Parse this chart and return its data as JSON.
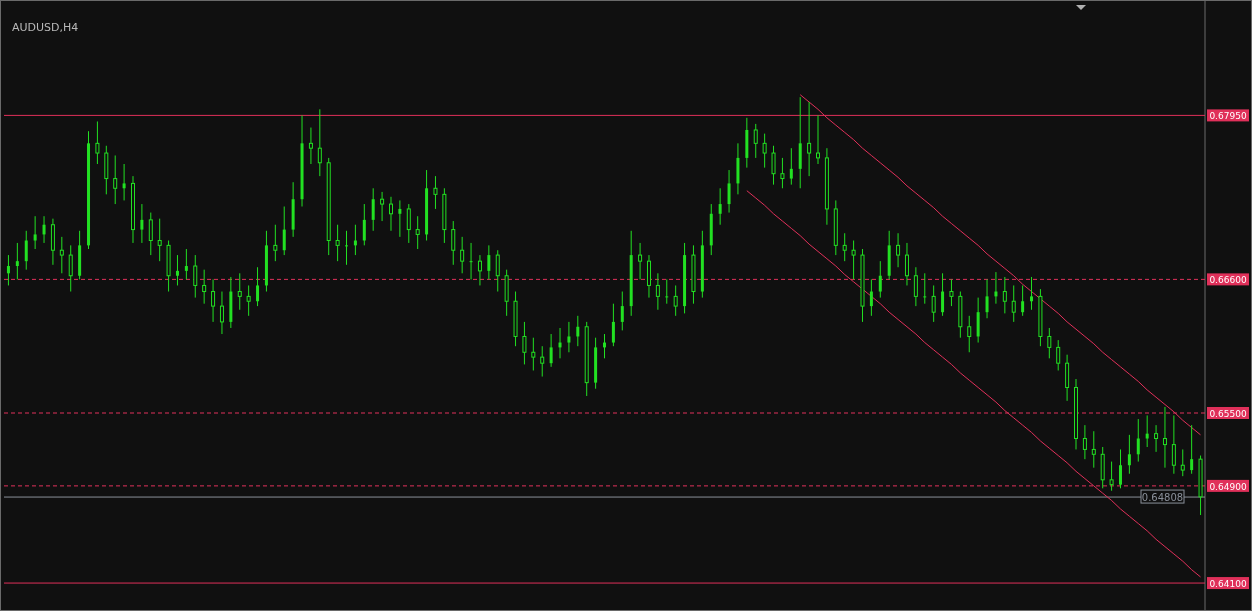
{
  "chart_data": {
    "type": "candlestick",
    "title": "AUDUSD,H4",
    "categories": [
      null,
      null,
      null,
      null,
      null,
      null,
      null,
      null,
      null,
      null,
      null,
      null,
      null,
      null,
      null,
      null,
      null,
      null,
      null,
      null,
      null,
      null,
      null,
      null,
      null,
      null,
      null,
      null,
      null,
      null,
      null,
      null,
      null,
      null,
      null,
      null,
      null,
      null,
      null,
      null,
      null,
      null,
      null,
      null,
      null,
      null,
      null,
      null,
      null,
      null,
      null,
      null,
      null,
      null,
      null,
      null,
      null,
      null,
      null,
      null,
      null,
      null,
      null,
      null,
      null,
      null,
      null,
      null,
      null,
      null,
      null,
      null,
      null,
      null,
      null,
      null,
      null,
      null,
      null,
      null,
      null,
      null,
      null,
      null,
      null,
      null,
      null,
      null,
      null,
      null,
      null,
      null,
      null,
      null,
      null,
      null,
      null,
      null,
      null,
      null,
      null,
      null,
      null,
      null,
      null,
      null,
      null,
      null,
      null,
      null,
      null,
      null,
      null,
      null,
      null,
      null,
      null,
      null,
      null,
      null,
      null,
      null,
      null,
      null,
      null,
      null,
      null,
      null,
      null,
      null,
      null,
      null,
      null,
      null,
      null
    ],
    "ylim": [
      0.6387,
      0.689
    ],
    "yticks": [
      {
        "value": 0.6795,
        "label": "0.67950"
      },
      {
        "value": 0.666,
        "label": "0.66600"
      },
      {
        "value": 0.655,
        "label": "0.65500"
      },
      {
        "value": 0.649,
        "label": "0.64900"
      },
      {
        "value": 0.641,
        "label": "0.64100"
      }
    ],
    "tick_labels": "y",
    "grid": false,
    "ref_lines": [
      {
        "axis": "y",
        "value": 0.6795,
        "color": "#e0305a",
        "line_style": "solid"
      },
      {
        "axis": "y",
        "value": 0.666,
        "color": "#e0305a",
        "line_style": "dashed"
      },
      {
        "axis": "y",
        "value": 0.655,
        "color": "#e0305a",
        "line_style": "dashed"
      },
      {
        "axis": "y",
        "value": 0.649,
        "color": "#e0305a",
        "line_style": "dashed"
      },
      {
        "axis": "y",
        "value": 0.641,
        "color": "#e0305a",
        "line_style": "solid"
      },
      {
        "axis": "y",
        "value": 0.64808,
        "label": "0.64808",
        "color": "#8a909a",
        "line_style": "solid"
      }
    ],
    "series": [
      {
        "type": "line",
        "color": "#e0305a",
        "values": [
          null,
          null,
          null,
          null,
          null,
          null,
          null,
          null,
          null,
          null,
          null,
          null,
          null,
          null,
          null,
          null,
          null,
          null,
          null,
          null,
          null,
          null,
          null,
          null,
          null,
          null,
          null,
          null,
          null,
          null,
          null,
          null,
          null,
          null,
          null,
          null,
          null,
          null,
          null,
          null,
          null,
          null,
          null,
          null,
          null,
          null,
          null,
          null,
          null,
          null,
          null,
          null,
          null,
          null,
          null,
          null,
          null,
          null,
          null,
          null,
          null,
          null,
          null,
          null,
          null,
          null,
          null,
          null,
          null,
          null,
          null,
          null,
          null,
          null,
          null,
          null,
          null,
          null,
          null,
          null,
          null,
          null,
          null,
          null,
          null,
          null,
          null,
          null,
          null,
          0.6812,
          0.6806,
          0.68,
          0.6793,
          0.6787,
          0.6781,
          0.6775,
          0.6768,
          0.6762,
          0.6756,
          0.675,
          0.6744,
          0.6737,
          0.6731,
          0.6725,
          0.6719,
          0.6712,
          0.6706,
          0.67,
          0.6694,
          0.6688,
          0.6681,
          0.6675,
          0.6669,
          0.6663,
          0.6656,
          0.665,
          0.6644,
          0.6638,
          0.6632,
          0.6625,
          0.6619,
          0.6613,
          0.6607,
          0.66,
          0.6594,
          0.6588,
          0.6582,
          0.6576,
          0.6569,
          0.6563,
          0.6557,
          0.6551,
          0.6544,
          0.6538,
          0.6532
        ]
      },
      {
        "type": "line",
        "color": "#e0305a",
        "values": [
          null,
          null,
          null,
          null,
          null,
          null,
          null,
          null,
          null,
          null,
          null,
          null,
          null,
          null,
          null,
          null,
          null,
          null,
          null,
          null,
          null,
          null,
          null,
          null,
          null,
          null,
          null,
          null,
          null,
          null,
          null,
          null,
          null,
          null,
          null,
          null,
          null,
          null,
          null,
          null,
          null,
          null,
          null,
          null,
          null,
          null,
          null,
          null,
          null,
          null,
          null,
          null,
          null,
          null,
          null,
          null,
          null,
          null,
          null,
          null,
          null,
          null,
          null,
          null,
          null,
          null,
          null,
          null,
          null,
          null,
          null,
          null,
          null,
          null,
          null,
          null,
          null,
          null,
          null,
          null,
          null,
          null,
          null,
          0.6733,
          0.6727,
          0.6721,
          0.6714,
          0.6708,
          0.6702,
          0.6696,
          0.6689,
          0.6683,
          0.6677,
          0.6671,
          0.6664,
          0.6658,
          0.6652,
          0.6646,
          0.664,
          0.6633,
          0.6627,
          0.6621,
          0.6615,
          0.6608,
          0.6602,
          0.6596,
          0.659,
          0.6583,
          0.6577,
          0.6571,
          0.6565,
          0.6559,
          0.6552,
          0.6546,
          0.654,
          0.6534,
          0.6527,
          0.6521,
          0.6515,
          0.6509,
          0.6502,
          0.6496,
          0.649,
          0.6484,
          0.6478,
          0.6471,
          0.6465,
          0.6459,
          0.6453,
          0.6446,
          0.644,
          0.6434,
          0.6428,
          0.6421,
          0.6415
        ]
      },
      {
        "type": "candlestick",
        "color": "#22e022",
        "ohlc": [
          [
            0.6665,
            0.668,
            0.6655,
            0.6671
          ],
          [
            0.6671,
            0.669,
            0.666,
            0.6675
          ],
          [
            0.6675,
            0.67,
            0.6668,
            0.6692
          ],
          [
            0.6692,
            0.6712,
            0.6685,
            0.6697
          ],
          [
            0.6697,
            0.6712,
            0.669,
            0.6705
          ],
          [
            0.6705,
            0.671,
            0.6672,
            0.6684
          ],
          [
            0.6684,
            0.6695,
            0.6665,
            0.668
          ],
          [
            0.668,
            0.6688,
            0.665,
            0.6663
          ],
          [
            0.6663,
            0.67,
            0.666,
            0.6688
          ],
          [
            0.6688,
            0.6782,
            0.6685,
            0.6772
          ],
          [
            0.6772,
            0.679,
            0.6755,
            0.6764
          ],
          [
            0.6764,
            0.677,
            0.673,
            0.6743
          ],
          [
            0.6743,
            0.6762,
            0.6722,
            0.6735
          ],
          [
            0.6735,
            0.6755,
            0.6725,
            0.6739
          ],
          [
            0.6739,
            0.6745,
            0.669,
            0.6701
          ],
          [
            0.6701,
            0.6722,
            0.669,
            0.6709
          ],
          [
            0.6709,
            0.6715,
            0.668,
            0.6692
          ],
          [
            0.6692,
            0.671,
            0.6675,
            0.6688
          ],
          [
            0.6688,
            0.6692,
            0.665,
            0.6663
          ],
          [
            0.6663,
            0.668,
            0.6655,
            0.6667
          ],
          [
            0.6667,
            0.6685,
            0.666,
            0.6671
          ],
          [
            0.6671,
            0.668,
            0.6645,
            0.6655
          ],
          [
            0.6655,
            0.6668,
            0.664,
            0.665
          ],
          [
            0.665,
            0.666,
            0.6625,
            0.6638
          ],
          [
            0.6638,
            0.665,
            0.6615,
            0.6625
          ],
          [
            0.6625,
            0.6662,
            0.662,
            0.665
          ],
          [
            0.665,
            0.6665,
            0.6635,
            0.6646
          ],
          [
            0.6646,
            0.6655,
            0.663,
            0.6642
          ],
          [
            0.6642,
            0.667,
            0.6638,
            0.6655
          ],
          [
            0.6655,
            0.67,
            0.665,
            0.6688
          ],
          [
            0.6688,
            0.6705,
            0.6675,
            0.6684
          ],
          [
            0.6684,
            0.672,
            0.668,
            0.6701
          ],
          [
            0.6701,
            0.674,
            0.6695,
            0.6726
          ],
          [
            0.6726,
            0.6795,
            0.672,
            0.6772
          ],
          [
            0.6772,
            0.6785,
            0.6755,
            0.6768
          ],
          [
            0.6768,
            0.68,
            0.6745,
            0.6756
          ],
          [
            0.6756,
            0.676,
            0.668,
            0.6692
          ],
          [
            0.6692,
            0.6705,
            0.6675,
            0.6688
          ],
          [
            0.6688,
            0.67,
            0.6672,
            0.6688
          ],
          [
            0.6688,
            0.6705,
            0.668,
            0.6692
          ],
          [
            0.6692,
            0.6722,
            0.6688,
            0.6709
          ],
          [
            0.6709,
            0.6735,
            0.67,
            0.6726
          ],
          [
            0.6726,
            0.6732,
            0.6708,
            0.6722
          ],
          [
            0.6722,
            0.6728,
            0.67,
            0.6714
          ],
          [
            0.6714,
            0.6725,
            0.6695,
            0.6718
          ],
          [
            0.6718,
            0.6722,
            0.669,
            0.6701
          ],
          [
            0.6701,
            0.6712,
            0.6685,
            0.6697
          ],
          [
            0.6697,
            0.675,
            0.6692,
            0.6735
          ],
          [
            0.6735,
            0.6745,
            0.6718,
            0.673
          ],
          [
            0.673,
            0.6735,
            0.669,
            0.6701
          ],
          [
            0.6701,
            0.6708,
            0.6672,
            0.6684
          ],
          [
            0.6684,
            0.6695,
            0.6665,
            0.6675
          ],
          [
            0.6675,
            0.669,
            0.666,
            0.6675
          ],
          [
            0.6675,
            0.668,
            0.6655,
            0.6667
          ],
          [
            0.6667,
            0.6688,
            0.666,
            0.668
          ],
          [
            0.668,
            0.6684,
            0.665,
            0.6663
          ],
          [
            0.6663,
            0.6668,
            0.663,
            0.6642
          ],
          [
            0.6642,
            0.665,
            0.6605,
            0.6613
          ],
          [
            0.6613,
            0.6625,
            0.659,
            0.66
          ],
          [
            0.66,
            0.6612,
            0.6585,
            0.6596
          ],
          [
            0.6596,
            0.6605,
            0.658,
            0.6591
          ],
          [
            0.6591,
            0.6615,
            0.6588,
            0.6604
          ],
          [
            0.6604,
            0.662,
            0.6595,
            0.6608
          ],
          [
            0.6608,
            0.6625,
            0.66,
            0.6613
          ],
          [
            0.6613,
            0.663,
            0.6605,
            0.6621
          ],
          [
            0.6621,
            0.6625,
            0.6564,
            0.6575
          ],
          [
            0.6575,
            0.6612,
            0.657,
            0.6604
          ],
          [
            0.6604,
            0.6615,
            0.6595,
            0.6608
          ],
          [
            0.6608,
            0.664,
            0.6605,
            0.6625
          ],
          [
            0.6625,
            0.665,
            0.6618,
            0.6638
          ],
          [
            0.6638,
            0.67,
            0.663,
            0.668
          ],
          [
            0.668,
            0.669,
            0.666,
            0.6675
          ],
          [
            0.6675,
            0.668,
            0.6645,
            0.6655
          ],
          [
            0.6655,
            0.6665,
            0.6635,
            0.6646
          ],
          [
            0.6646,
            0.666,
            0.664,
            0.6646
          ],
          [
            0.6646,
            0.6655,
            0.663,
            0.6638
          ],
          [
            0.6638,
            0.669,
            0.6632,
            0.668
          ],
          [
            0.668,
            0.6688,
            0.664,
            0.665
          ],
          [
            0.665,
            0.67,
            0.6645,
            0.6688
          ],
          [
            0.6688,
            0.6722,
            0.668,
            0.6714
          ],
          [
            0.6714,
            0.6735,
            0.6705,
            0.6722
          ],
          [
            0.6722,
            0.675,
            0.6715,
            0.6739
          ],
          [
            0.6739,
            0.6772,
            0.673,
            0.676
          ],
          [
            0.676,
            0.6793,
            0.6752,
            0.6783
          ],
          [
            0.6783,
            0.6788,
            0.676,
            0.6772
          ],
          [
            0.6772,
            0.678,
            0.6752,
            0.6764
          ],
          [
            0.6764,
            0.677,
            0.6738,
            0.6747
          ],
          [
            0.6747,
            0.676,
            0.6735,
            0.6743
          ],
          [
            0.6743,
            0.6768,
            0.6738,
            0.6751
          ],
          [
            0.6751,
            0.681,
            0.6735,
            0.6772
          ],
          [
            0.6772,
            0.6806,
            0.6745,
            0.6764
          ],
          [
            0.6764,
            0.6795,
            0.6755,
            0.676
          ],
          [
            0.676,
            0.6768,
            0.6705,
            0.6718
          ],
          [
            0.6718,
            0.6725,
            0.668,
            0.6688
          ],
          [
            0.6688,
            0.6698,
            0.6675,
            0.6684
          ],
          [
            0.6684,
            0.6692,
            0.666,
            0.668
          ],
          [
            0.668,
            0.6685,
            0.6625,
            0.6638
          ],
          [
            0.6638,
            0.666,
            0.663,
            0.665
          ],
          [
            0.665,
            0.6675,
            0.6645,
            0.6663
          ],
          [
            0.6663,
            0.67,
            0.666,
            0.6688
          ],
          [
            0.6688,
            0.6698,
            0.667,
            0.668
          ],
          [
            0.668,
            0.669,
            0.6655,
            0.6663
          ],
          [
            0.6663,
            0.667,
            0.6638,
            0.6646
          ],
          [
            0.6646,
            0.6665,
            0.664,
            0.6646
          ],
          [
            0.6646,
            0.6655,
            0.6625,
            0.6633
          ],
          [
            0.6633,
            0.6665,
            0.663,
            0.665
          ],
          [
            0.665,
            0.666,
            0.6638,
            0.6646
          ],
          [
            0.6646,
            0.665,
            0.6612,
            0.6621
          ],
          [
            0.6621,
            0.663,
            0.66,
            0.6613
          ],
          [
            0.6613,
            0.6645,
            0.6608,
            0.6633
          ],
          [
            0.6633,
            0.666,
            0.6628,
            0.6646
          ],
          [
            0.6646,
            0.6666,
            0.664,
            0.665
          ],
          [
            0.665,
            0.6662,
            0.6632,
            0.6642
          ],
          [
            0.6642,
            0.6655,
            0.6625,
            0.6633
          ],
          [
            0.6633,
            0.6655,
            0.663,
            0.6642
          ],
          [
            0.6642,
            0.6662,
            0.6635,
            0.6646
          ],
          [
            0.6646,
            0.6652,
            0.6605,
            0.6613
          ],
          [
            0.6613,
            0.662,
            0.6595,
            0.6604
          ],
          [
            0.6604,
            0.661,
            0.6585,
            0.6591
          ],
          [
            0.6591,
            0.6598,
            0.656,
            0.6571
          ],
          [
            0.6571,
            0.6578,
            0.652,
            0.6529
          ],
          [
            0.6529,
            0.654,
            0.6512,
            0.652
          ],
          [
            0.652,
            0.6535,
            0.6505,
            0.6516
          ],
          [
            0.6516,
            0.6522,
            0.6488,
            0.6495
          ],
          [
            0.6495,
            0.651,
            0.6486,
            0.6491
          ],
          [
            0.6491,
            0.652,
            0.6488,
            0.6507
          ],
          [
            0.6507,
            0.6532,
            0.65,
            0.6516
          ],
          [
            0.6516,
            0.6545,
            0.651,
            0.6529
          ],
          [
            0.6529,
            0.6548,
            0.6522,
            0.6533
          ],
          [
            0.6533,
            0.654,
            0.6518,
            0.6529
          ],
          [
            0.6529,
            0.6555,
            0.6505,
            0.6524
          ],
          [
            0.6524,
            0.6548,
            0.65,
            0.6507
          ],
          [
            0.6507,
            0.652,
            0.6498,
            0.6503
          ],
          [
            0.6503,
            0.654,
            0.65,
            0.6512
          ],
          [
            0.6512,
            0.6515,
            0.6466,
            0.6481
          ]
        ]
      }
    ]
  }
}
